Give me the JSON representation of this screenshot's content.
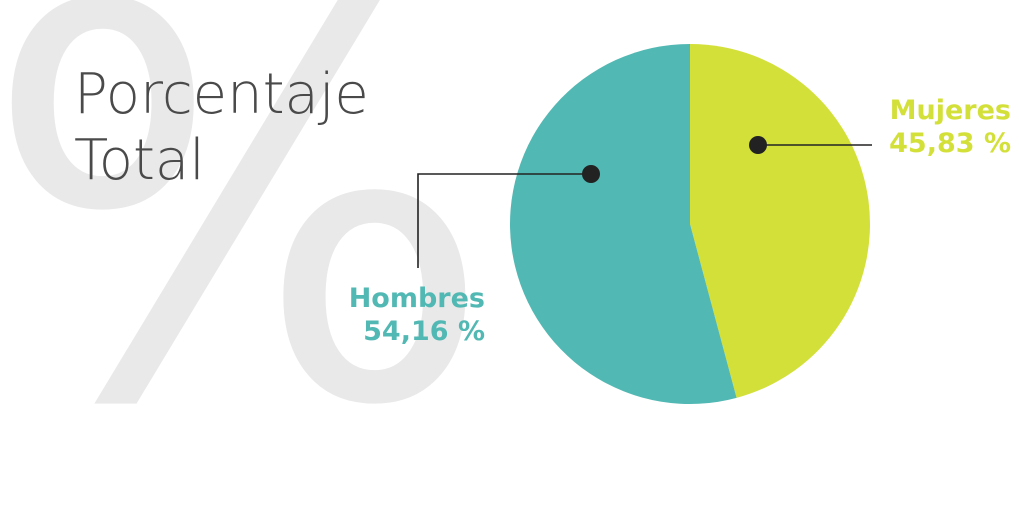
{
  "background_glyph": "%",
  "title_lines": [
    "Porcentaje",
    "Total"
  ],
  "colors": {
    "hombres": "#52b8b3",
    "mujeres": "#d4e03a",
    "title": "#4a4a4a",
    "leader": "#222222",
    "background_glyph": "#e9e9e9"
  },
  "chart_data": {
    "type": "pie",
    "title": "Porcentaje Total",
    "start_angle_deg": 0,
    "direction": "clockwise",
    "legend": "none",
    "slices": [
      {
        "label": "Mujeres",
        "value": 45.83,
        "value_text": "45,83 %",
        "color": "#d4e03a"
      },
      {
        "label": "Hombres",
        "value": 54.16,
        "value_text": "54,16 %",
        "color": "#52b8b3"
      }
    ]
  }
}
